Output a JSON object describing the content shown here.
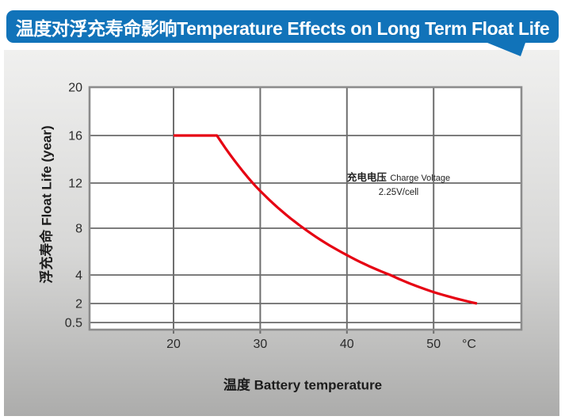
{
  "header": {
    "title": "温度对浮充寿命影响Temperature Effects on Long Term Float Life"
  },
  "colors": {
    "banner_bg": "#1173b9",
    "banner_text": "#ffffff",
    "panel_top": "#f0f0ef",
    "panel_bottom": "#acacab",
    "plot_bg": "#ffffff",
    "frame": "#8c8c8c",
    "h_grid": "#2e2e2e",
    "v_grid": "#6e6e6e",
    "tick_text": "#2b2b2b",
    "curve": "#e60012"
  },
  "chart_data": {
    "type": "line",
    "title": "温度对浮充寿命影响 Temperature Effects on Long Term Float Life",
    "xlabel": "温度  Battery temperature",
    "ylabel": "浮充寿命  Float Life (year)",
    "x_unit": "°C",
    "x_ticks": [
      20,
      30,
      40,
      50
    ],
    "y_ticks": [
      20,
      16,
      12,
      8,
      4,
      2,
      0.5
    ],
    "x_range": [
      10,
      60
    ],
    "grid": true,
    "legend_position": "none",
    "axis_note": "y axis compressed (non-linear) below 4 years",
    "annotation": {
      "cn": "充电电压",
      "en": "Charge Voltage",
      "value": "2.25V/cell"
    },
    "series": [
      {
        "name": "Float Life at 2.25V/cell",
        "color": "#e60012",
        "points": [
          [
            20,
            16
          ],
          [
            25,
            16
          ],
          [
            30,
            11.3
          ],
          [
            35,
            8
          ],
          [
            40,
            5.7
          ],
          [
            45,
            4
          ],
          [
            50,
            2.8
          ],
          [
            55,
            2
          ]
        ]
      }
    ]
  }
}
